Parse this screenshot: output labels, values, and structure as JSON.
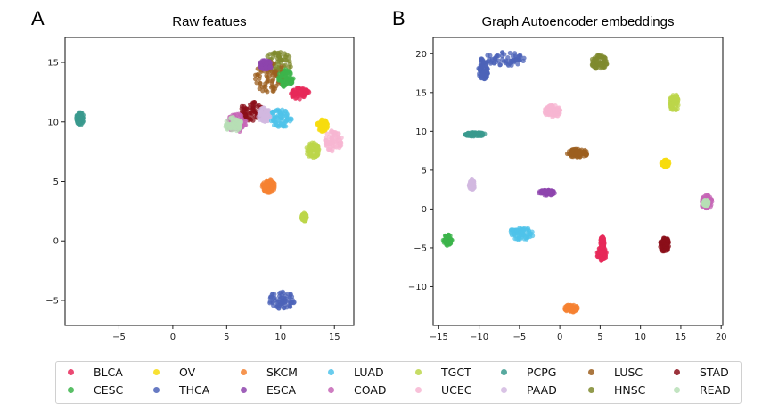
{
  "figure": {
    "panels": [
      {
        "letter": "A",
        "title": "Raw featues"
      },
      {
        "letter": "B",
        "title": "Graph Autoencoder embeddings"
      }
    ]
  },
  "legend": {
    "placement": "bottom-center",
    "items": [
      {
        "label": "BLCA",
        "color": "#e7295a"
      },
      {
        "label": "CESC",
        "color": "#3cb44b"
      },
      {
        "label": "OV",
        "color": "#f7dc0f"
      },
      {
        "label": "THCA",
        "color": "#4c63b8"
      },
      {
        "label": "SKCM",
        "color": "#f58231"
      },
      {
        "label": "ESCA",
        "color": "#8e44ad"
      },
      {
        "label": "LUAD",
        "color": "#4fc3ea"
      },
      {
        "label": "COAD",
        "color": "#c566b6"
      },
      {
        "label": "TGCT",
        "color": "#bcd64a"
      },
      {
        "label": "UCEC",
        "color": "#f7b6d2"
      },
      {
        "label": "PCPG",
        "color": "#3a9a8e"
      },
      {
        "label": "PAAD",
        "color": "#d2b8e0"
      },
      {
        "label": "LUSC",
        "color": "#9c5f1f"
      },
      {
        "label": "HNSC",
        "color": "#7f8a2e"
      },
      {
        "label": "STAD",
        "color": "#8b0f1a"
      },
      {
        "label": "READ",
        "color": "#b7dfb6"
      }
    ]
  },
  "chart_data": [
    {
      "type": "scatter",
      "title": "Raw featues",
      "panel": "A",
      "xlabel": "",
      "ylabel": "",
      "xlim": [
        -10,
        16.8
      ],
      "ylim": [
        -7.1,
        17.1
      ],
      "xticks": [
        -5,
        0,
        5,
        10,
        15
      ],
      "yticks": [
        -5,
        0,
        5,
        10,
        15
      ],
      "grid": false,
      "clusters": [
        {
          "label": "PCPG",
          "x": -8.6,
          "y": 10.3,
          "rx": 0.35,
          "ry": 0.55
        },
        {
          "label": "HNSC",
          "x": 9.8,
          "y": 15.0,
          "rx": 1.3,
          "ry": 0.9
        },
        {
          "label": "LUSC",
          "x": 9.0,
          "y": 13.8,
          "rx": 1.4,
          "ry": 1.4
        },
        {
          "label": "ESCA",
          "x": 8.6,
          "y": 14.8,
          "rx": 0.6,
          "ry": 0.4
        },
        {
          "label": "CESC",
          "x": 10.5,
          "y": 13.7,
          "rx": 0.7,
          "ry": 0.8
        },
        {
          "label": "BLCA",
          "x": 11.8,
          "y": 12.4,
          "rx": 0.9,
          "ry": 0.5
        },
        {
          "label": "STAD",
          "x": 7.3,
          "y": 10.9,
          "rx": 1.1,
          "ry": 0.8
        },
        {
          "label": "COAD",
          "x": 5.9,
          "y": 9.9,
          "rx": 0.9,
          "ry": 0.8
        },
        {
          "label": "READ",
          "x": 5.6,
          "y": 9.8,
          "rx": 0.8,
          "ry": 0.6
        },
        {
          "label": "PAAD",
          "x": 8.5,
          "y": 10.6,
          "rx": 0.6,
          "ry": 0.6
        },
        {
          "label": "LUAD",
          "x": 10.0,
          "y": 10.3,
          "rx": 1.1,
          "ry": 0.8
        },
        {
          "label": "OV",
          "x": 13.9,
          "y": 9.7,
          "rx": 0.5,
          "ry": 0.5
        },
        {
          "label": "UCEC",
          "x": 14.9,
          "y": 8.4,
          "rx": 0.8,
          "ry": 0.9
        },
        {
          "label": "TGCT",
          "x": 13.0,
          "y": 7.6,
          "rx": 0.6,
          "ry": 0.7
        },
        {
          "label": "TGCT",
          "x": 12.2,
          "y": 2.0,
          "rx": 0.25,
          "ry": 0.35
        },
        {
          "label": "SKCM",
          "x": 8.9,
          "y": 4.6,
          "rx": 0.6,
          "ry": 0.55
        },
        {
          "label": "THCA",
          "x": 10.1,
          "y": -5.0,
          "rx": 1.2,
          "ry": 0.75
        }
      ]
    },
    {
      "type": "scatter",
      "title": "Graph Autoencoder embeddings",
      "panel": "B",
      "xlabel": "",
      "ylabel": "",
      "xlim": [
        -15.7,
        20.2
      ],
      "ylim": [
        -15,
        22.1
      ],
      "xticks": [
        -15,
        -10,
        -5,
        0,
        5,
        10,
        15,
        20
      ],
      "yticks": [
        -10,
        -5,
        0,
        5,
        10,
        15,
        20
      ],
      "grid": false,
      "clusters": [
        {
          "label": "THCA",
          "x": -7.0,
          "y": 19.3,
          "rx": 2.8,
          "ry": 0.9
        },
        {
          "label": "THCA",
          "x": -9.5,
          "y": 17.8,
          "rx": 0.6,
          "ry": 1.2
        },
        {
          "label": "HNSC",
          "x": 4.9,
          "y": 18.9,
          "rx": 1.0,
          "ry": 0.9
        },
        {
          "label": "TGCT",
          "x": 14.2,
          "y": 13.7,
          "rx": 0.6,
          "ry": 1.1
        },
        {
          "label": "UCEC",
          "x": -0.9,
          "y": 12.6,
          "rx": 1.0,
          "ry": 0.8
        },
        {
          "label": "PCPG",
          "x": -10.5,
          "y": 9.6,
          "rx": 1.3,
          "ry": 0.25
        },
        {
          "label": "LUSC",
          "x": 2.2,
          "y": 7.2,
          "rx": 1.3,
          "ry": 0.55
        },
        {
          "label": "OV",
          "x": 13.1,
          "y": 5.9,
          "rx": 0.5,
          "ry": 0.45
        },
        {
          "label": "PAAD",
          "x": -10.9,
          "y": 3.1,
          "rx": 0.35,
          "ry": 0.7
        },
        {
          "label": "ESCA",
          "x": -1.6,
          "y": 2.1,
          "rx": 1.0,
          "ry": 0.35
        },
        {
          "label": "COAD",
          "x": 18.2,
          "y": 0.9,
          "rx": 0.7,
          "ry": 0.9
        },
        {
          "label": "READ",
          "x": 18.1,
          "y": 0.8,
          "rx": 0.35,
          "ry": 0.4
        },
        {
          "label": "CESC",
          "x": -13.9,
          "y": -4.0,
          "rx": 0.55,
          "ry": 0.7
        },
        {
          "label": "LUAD",
          "x": -4.8,
          "y": -3.2,
          "rx": 1.5,
          "ry": 0.9
        },
        {
          "label": "BLCA",
          "x": 5.2,
          "y": -5.8,
          "rx": 0.6,
          "ry": 0.9
        },
        {
          "label": "BLCA",
          "x": 5.3,
          "y": -4.3,
          "rx": 0.25,
          "ry": 0.8
        },
        {
          "label": "STAD",
          "x": 13.0,
          "y": -4.6,
          "rx": 0.55,
          "ry": 1.0
        },
        {
          "label": "SKCM",
          "x": 1.4,
          "y": -12.8,
          "rx": 0.8,
          "ry": 0.5
        }
      ]
    }
  ]
}
